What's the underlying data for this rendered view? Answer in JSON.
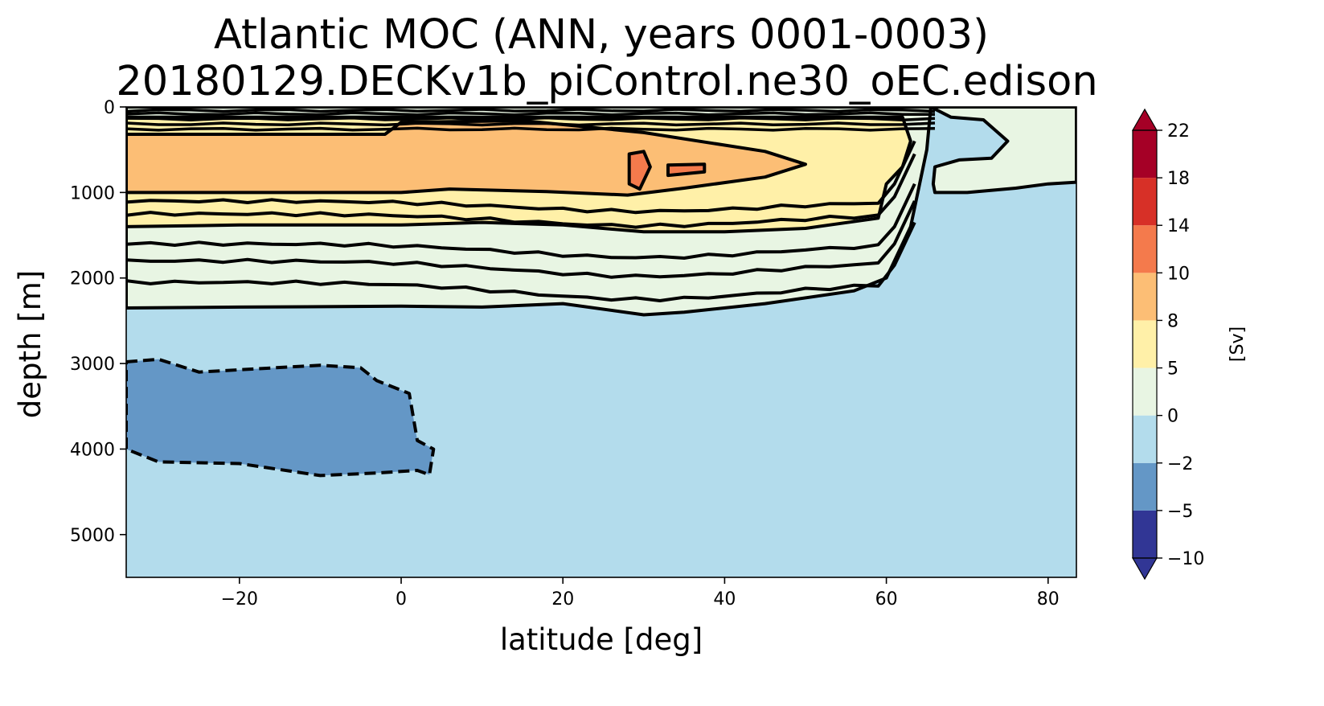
{
  "chart_data": {
    "type": "contour",
    "title": "Atlantic MOC (ANN, years 0001-0003)",
    "subtitle": "20180129.DECKv1b_piControl.ne30_oEC.edison",
    "xlabel": "latitude [deg]",
    "ylabel": "depth [m]",
    "xlim": [
      -34,
      83.5
    ],
    "ylim": [
      5500,
      0
    ],
    "y_inverted": true,
    "xticks": [
      -20,
      0,
      20,
      40,
      60,
      80
    ],
    "yticks": [
      0,
      1000,
      2000,
      3000,
      4000,
      5000
    ],
    "grid": false,
    "colorbar": {
      "label": "[Sv]",
      "levels": [
        -10,
        -5,
        -2,
        0,
        5,
        8,
        10,
        14,
        18,
        22
      ],
      "tick_labels": [
        "−10",
        "−5",
        "−2",
        "0",
        "5",
        "8",
        "10",
        "14",
        "18",
        "22"
      ],
      "colors": [
        "#313695",
        "#6497c6",
        "#b3dcec",
        "#e8f5e3",
        "#fff0a8",
        "#fcbe75",
        "#f47a4c",
        "#d73027",
        "#a50026"
      ],
      "extend": "both",
      "under_color": "#313695",
      "over_color": "#a50026"
    },
    "regions": [
      {
        "name": "positive-cell-0-5",
        "level": "0 to 5",
        "color": "#e8f5e3",
        "outline": [
          [
            -34,
            0
          ],
          [
            65.5,
            0
          ],
          [
            68,
            120
          ],
          [
            72,
            150
          ],
          [
            75,
            400
          ],
          [
            73,
            600
          ],
          [
            69,
            620
          ],
          [
            66,
            700
          ],
          [
            65.8,
            900
          ],
          [
            66,
            1000
          ],
          [
            70,
            1000
          ],
          [
            76,
            950
          ],
          [
            80,
            900
          ],
          [
            83.5,
            880
          ],
          [
            83.5,
            0
          ],
          [
            65.5,
            0
          ],
          [
            65,
            500
          ],
          [
            63,
            1400
          ],
          [
            60,
            2000
          ],
          [
            56,
            2150
          ],
          [
            45,
            2300
          ],
          [
            35,
            2400
          ],
          [
            30,
            2430
          ],
          [
            20,
            2300
          ],
          [
            10,
            2340
          ],
          [
            0,
            2330
          ],
          [
            -20,
            2340
          ],
          [
            -34,
            2350
          ]
        ]
      },
      {
        "name": "positive-cell-5-8",
        "level": "5 to 8",
        "color": "#fff0a8",
        "outline": [
          [
            -34,
            120
          ],
          [
            62,
            120
          ],
          [
            63,
            400
          ],
          [
            62,
            700
          ],
          [
            60,
            900
          ],
          [
            59,
            1300
          ],
          [
            50,
            1420
          ],
          [
            40,
            1460
          ],
          [
            30,
            1460
          ],
          [
            20,
            1380
          ],
          [
            10,
            1350
          ],
          [
            0,
            1380
          ],
          [
            -20,
            1380
          ],
          [
            -34,
            1400
          ]
        ]
      },
      {
        "name": "positive-cell-8-10",
        "level": "8 to 10",
        "color": "#fcbe75",
        "outline": [
          [
            -34,
            320
          ],
          [
            -2,
            320
          ],
          [
            0,
            180
          ],
          [
            15,
            160
          ],
          [
            30,
            300
          ],
          [
            45,
            520
          ],
          [
            50,
            670
          ],
          [
            45,
            820
          ],
          [
            35,
            950
          ],
          [
            28,
            1030
          ],
          [
            18,
            990
          ],
          [
            6,
            960
          ],
          [
            0,
            1000
          ],
          [
            -20,
            1000
          ],
          [
            -34,
            1000
          ]
        ]
      },
      {
        "name": "positive-cell-10-14-a",
        "level": "10 to 14",
        "color": "#f47a4c",
        "outline": [
          [
            28.2,
            550
          ],
          [
            30,
            520
          ],
          [
            30.8,
            700
          ],
          [
            29.5,
            960
          ],
          [
            28.2,
            900
          ]
        ]
      },
      {
        "name": "positive-cell-10-14-b",
        "level": "10 to 14",
        "color": "#f47a4c",
        "outline": [
          [
            33,
            680
          ],
          [
            37.5,
            670
          ],
          [
            37.5,
            760
          ],
          [
            33,
            800
          ]
        ]
      },
      {
        "name": "negative-cell-abyssal",
        "level": "-5 to -2",
        "color": "#6497c6",
        "outline": [
          [
            -34,
            2980
          ],
          [
            -30,
            2950
          ],
          [
            -25,
            3100
          ],
          [
            -10,
            3020
          ],
          [
            -5,
            3050
          ],
          [
            -3,
            3200
          ],
          [
            1,
            3350
          ],
          [
            2,
            3900
          ],
          [
            4,
            4000
          ],
          [
            3.5,
            4300
          ],
          [
            2,
            4250
          ],
          [
            -3,
            4280
          ],
          [
            -10,
            4310
          ],
          [
            -20,
            4170
          ],
          [
            -30,
            4150
          ],
          [
            -34,
            4000
          ]
        ]
      }
    ]
  }
}
